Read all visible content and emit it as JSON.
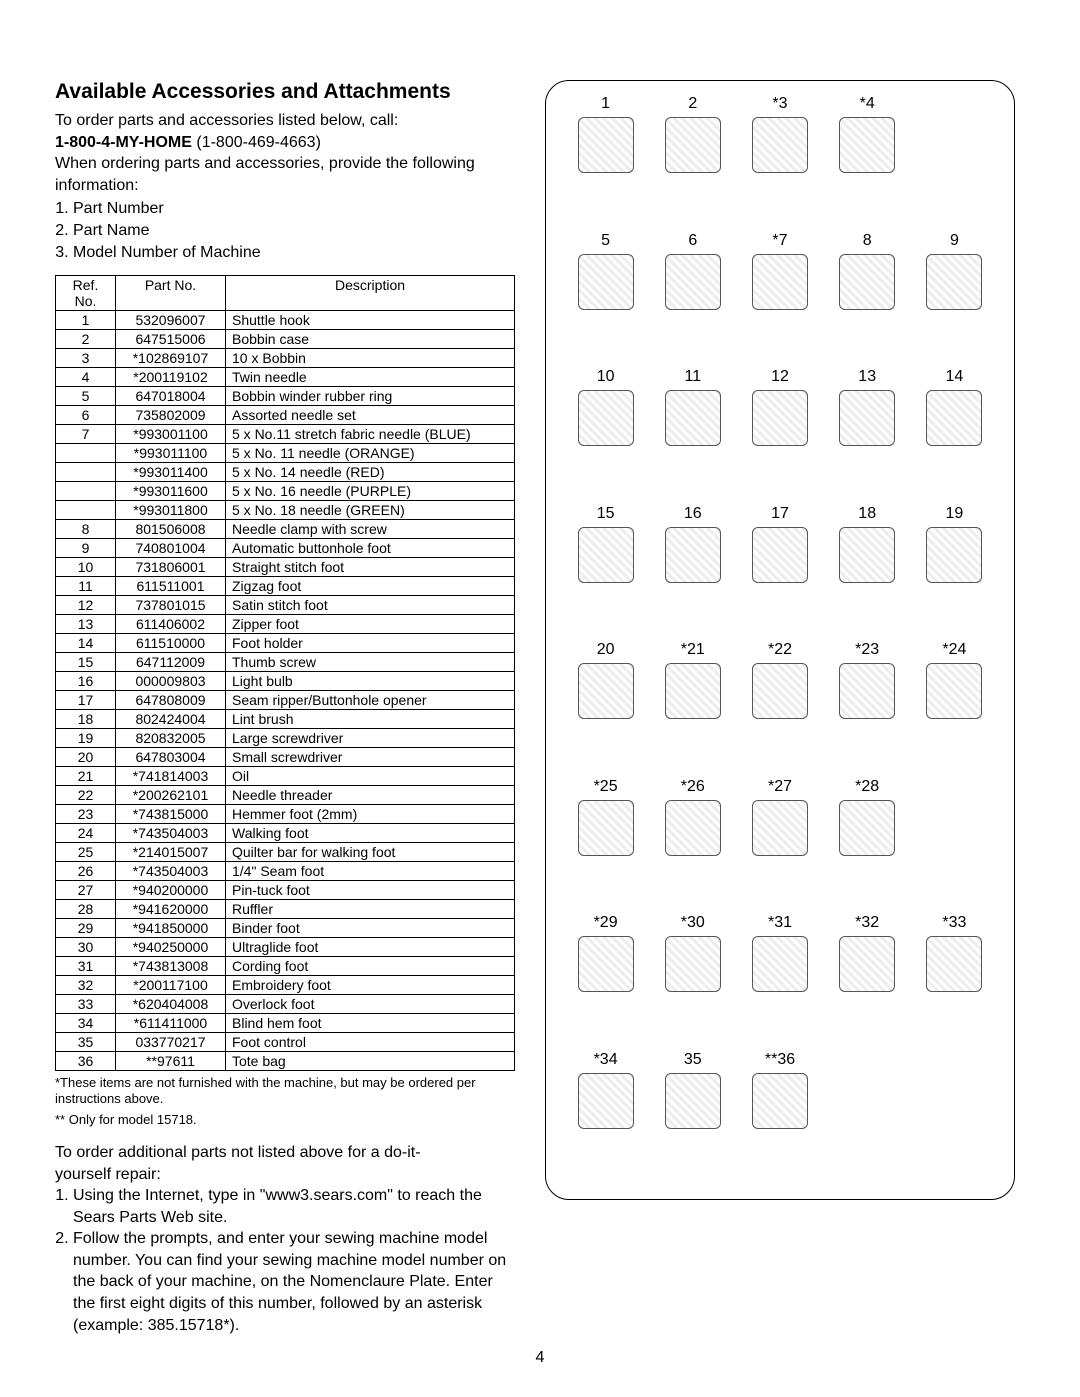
{
  "title": "Available Accessories and Attachments",
  "intro_line1": "To order parts and accessories listed below, call:",
  "phone_bold": "1-800-4-MY-HOME",
  "phone_paren": " (1-800-469-4663)",
  "intro_line2a": "When ordering parts and accessories, provide the following",
  "intro_line2b": "information:",
  "intro_items": [
    "Part Number",
    "Part Name",
    "Model Number of Machine"
  ],
  "table_headers": [
    "Ref. No.",
    "Part No.",
    "Description"
  ],
  "rows": [
    {
      "ref": "1",
      "pn": "532096007",
      "desc": "Shuttle hook"
    },
    {
      "ref": "2",
      "pn": "647515006",
      "desc": "Bobbin case"
    },
    {
      "ref": "3",
      "pn": "*102869107",
      "desc": "10 x Bobbin"
    },
    {
      "ref": "4",
      "pn": "*200119102",
      "desc": "Twin needle"
    },
    {
      "ref": "5",
      "pn": "647018004",
      "desc": "Bobbin winder rubber ring"
    },
    {
      "ref": "6",
      "pn": "735802009",
      "desc": "Assorted needle set"
    },
    {
      "ref": "7",
      "pn": "*993001100",
      "desc": "5 x No.11 stretch fabric needle (BLUE)"
    },
    {
      "ref": "",
      "pn": "*993011100",
      "desc": "5 x No. 11 needle (ORANGE)"
    },
    {
      "ref": "",
      "pn": "*993011400",
      "desc": "5 x No. 14 needle (RED)"
    },
    {
      "ref": "",
      "pn": "*993011600",
      "desc": "5 x No. 16 needle (PURPLE)"
    },
    {
      "ref": "",
      "pn": "*993011800",
      "desc": "5 x No. 18 needle (GREEN)"
    },
    {
      "ref": "8",
      "pn": "801506008",
      "desc": "Needle clamp with screw"
    },
    {
      "ref": "9",
      "pn": "740801004",
      "desc": "Automatic buttonhole foot"
    },
    {
      "ref": "10",
      "pn": "731806001",
      "desc": "Straight stitch foot"
    },
    {
      "ref": "11",
      "pn": "611511001",
      "desc": "Zigzag foot"
    },
    {
      "ref": "12",
      "pn": "737801015",
      "desc": "Satin stitch foot"
    },
    {
      "ref": "13",
      "pn": "611406002",
      "desc": "Zipper foot"
    },
    {
      "ref": "14",
      "pn": "611510000",
      "desc": "Foot holder"
    },
    {
      "ref": "15",
      "pn": "647112009",
      "desc": "Thumb screw"
    },
    {
      "ref": "16",
      "pn": "000009803",
      "desc": "Light bulb"
    },
    {
      "ref": "17",
      "pn": "647808009",
      "desc": "Seam ripper/Buttonhole opener"
    },
    {
      "ref": "18",
      "pn": "802424004",
      "desc": "Lint brush"
    },
    {
      "ref": "19",
      "pn": "820832005",
      "desc": "Large screwdriver"
    },
    {
      "ref": "20",
      "pn": "647803004",
      "desc": "Small screwdriver"
    },
    {
      "ref": "21",
      "pn": "*741814003",
      "desc": "Oil"
    },
    {
      "ref": "22",
      "pn": "*200262101",
      "desc": "Needle threader"
    },
    {
      "ref": "23",
      "pn": "*743815000",
      "desc": "Hemmer foot (2mm)"
    },
    {
      "ref": "24",
      "pn": "*743504003",
      "desc": "Walking foot"
    },
    {
      "ref": "25",
      "pn": "*214015007",
      "desc": "Quilter bar for walking foot"
    },
    {
      "ref": "26",
      "pn": "*743504003",
      "desc": "1/4\" Seam foot"
    },
    {
      "ref": "27",
      "pn": "*940200000",
      "desc": "Pin-tuck foot"
    },
    {
      "ref": "28",
      "pn": "*941620000",
      "desc": "Ruffler"
    },
    {
      "ref": "29",
      "pn": "*941850000",
      "desc": "Binder foot"
    },
    {
      "ref": "30",
      "pn": "*940250000",
      "desc": "Ultraglide foot"
    },
    {
      "ref": "31",
      "pn": "*743813008",
      "desc": "Cording foot"
    },
    {
      "ref": "32",
      "pn": "*200117100",
      "desc": "Embroidery foot"
    },
    {
      "ref": "33",
      "pn": "*620404008",
      "desc": "Overlock foot"
    },
    {
      "ref": "34",
      "pn": "*611411000",
      "desc": "Blind hem foot"
    },
    {
      "ref": "35",
      "pn": "033770217",
      "desc": "Foot control"
    },
    {
      "ref": "36",
      "pn": "**97611",
      "desc": "Tote bag"
    }
  ],
  "footnote1": "*These items are not furnished with the machine, but may be ordered per instructions above.",
  "footnote2": "** Only for model 15718.",
  "order_more_intro1": "To order additional parts not listed above for a do-it-",
  "order_more_intro2": "yourself repair:",
  "order_more_items": [
    "Using the Internet, type in \"www3.sears.com\" to reach the Sears Parts Web site.",
    "Follow the prompts, and enter your sewing machine model number. You can find your sewing machine model number on the back of your machine, on the Nomenclaure Plate. Enter the first eight digits of this number, followed by an asterisk (example: 385.15718*)."
  ],
  "diagram_rows": [
    [
      "1",
      "2",
      "*3",
      "*4",
      ""
    ],
    [
      "5",
      "6",
      "*7",
      "8",
      "9"
    ],
    [
      "10",
      "11",
      "12",
      "13",
      "14"
    ],
    [
      "15",
      "16",
      "17",
      "18",
      "19"
    ],
    [
      "20",
      "*21",
      "*22",
      "*23",
      "*24"
    ],
    [
      "*25",
      "*26",
      "*27",
      "*28",
      ""
    ],
    [
      "*29",
      "*30",
      "*31",
      "*32",
      "*33"
    ],
    [
      "*34",
      "35",
      "**36",
      "",
      ""
    ]
  ],
  "page_number": "4"
}
